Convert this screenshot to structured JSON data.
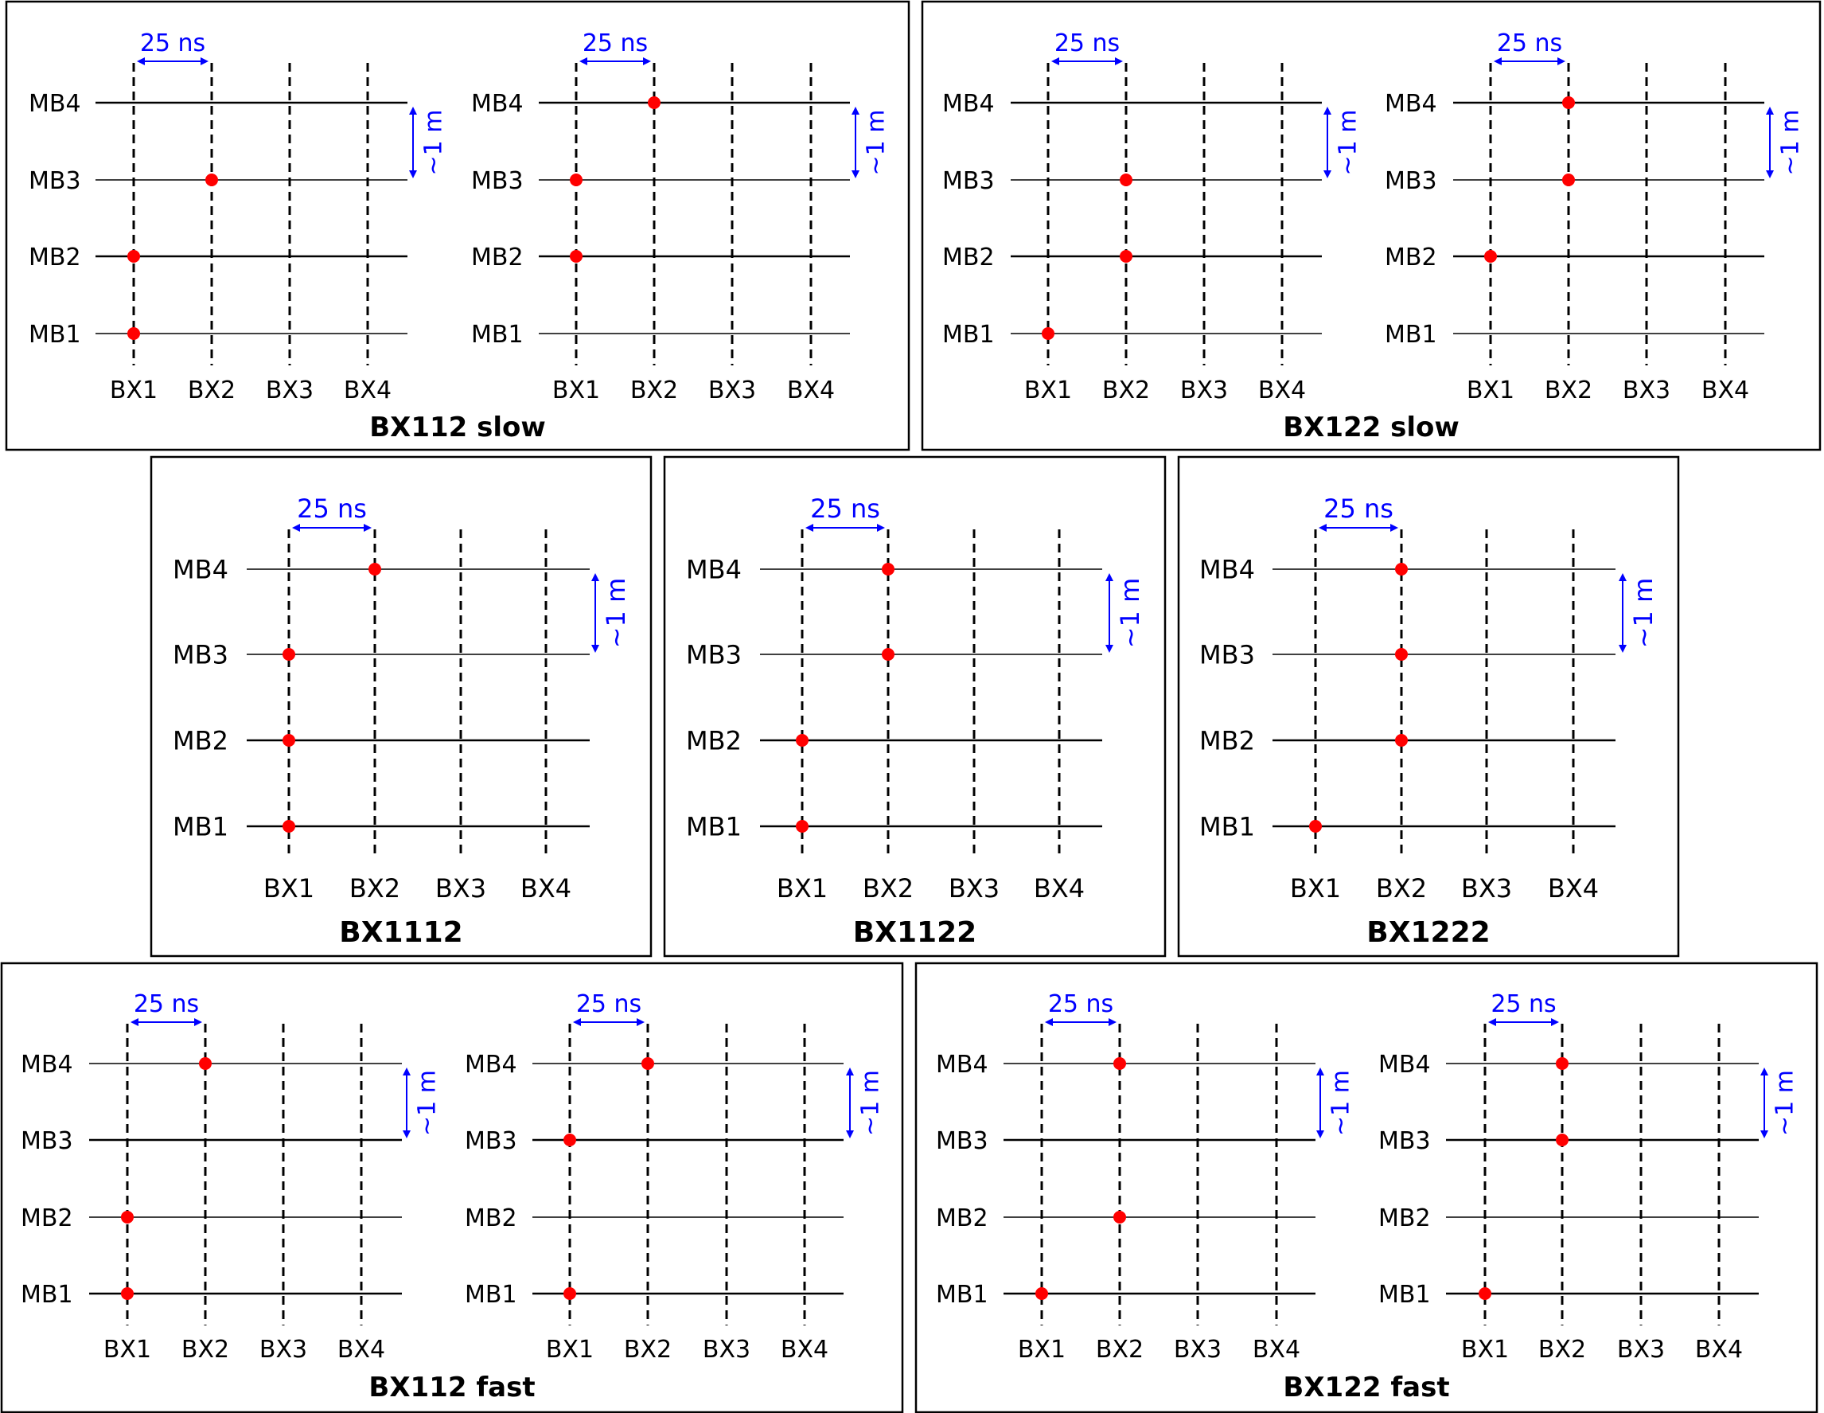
{
  "stations": [
    "MB1",
    "MB2",
    "MB3",
    "MB4"
  ],
  "bx_labels": [
    "BX1",
    "BX2",
    "BX3",
    "BX4"
  ],
  "time_label": "25 ns",
  "distance_label": "~1 m",
  "colors": {
    "hit": "#ff0000",
    "annotation": "#0000ff",
    "line": "#000000"
  },
  "boxes": [
    {
      "title": "BX112 slow",
      "panels": [
        {
          "hits": {
            "MB1": 1,
            "MB2": 1,
            "MB3": 2
          }
        },
        {
          "hits": {
            "MB2": 1,
            "MB3": 1,
            "MB4": 2
          }
        }
      ]
    },
    {
      "title": "BX122 slow",
      "panels": [
        {
          "hits": {
            "MB1": 1,
            "MB2": 2,
            "MB3": 2
          }
        },
        {
          "hits": {
            "MB2": 1,
            "MB3": 2,
            "MB4": 2
          }
        }
      ]
    },
    {
      "title": "BX1112",
      "panels": [
        {
          "hits": {
            "MB1": 1,
            "MB2": 1,
            "MB3": 1,
            "MB4": 2
          }
        }
      ]
    },
    {
      "title": "BX1122",
      "panels": [
        {
          "hits": {
            "MB1": 1,
            "MB2": 1,
            "MB3": 2,
            "MB4": 2
          }
        }
      ]
    },
    {
      "title": "BX1222",
      "panels": [
        {
          "hits": {
            "MB1": 1,
            "MB2": 2,
            "MB3": 2,
            "MB4": 2
          }
        }
      ]
    },
    {
      "title": "BX112 fast",
      "panels": [
        {
          "hits": {
            "MB1": 1,
            "MB2": 1,
            "MB4": 2
          }
        },
        {
          "hits": {
            "MB1": 1,
            "MB3": 1,
            "MB4": 2
          }
        }
      ]
    },
    {
      "title": "BX122 fast",
      "panels": [
        {
          "hits": {
            "MB1": 1,
            "MB2": 2,
            "MB4": 2
          }
        },
        {
          "hits": {
            "MB1": 1,
            "MB3": 2,
            "MB4": 2
          }
        }
      ]
    }
  ]
}
